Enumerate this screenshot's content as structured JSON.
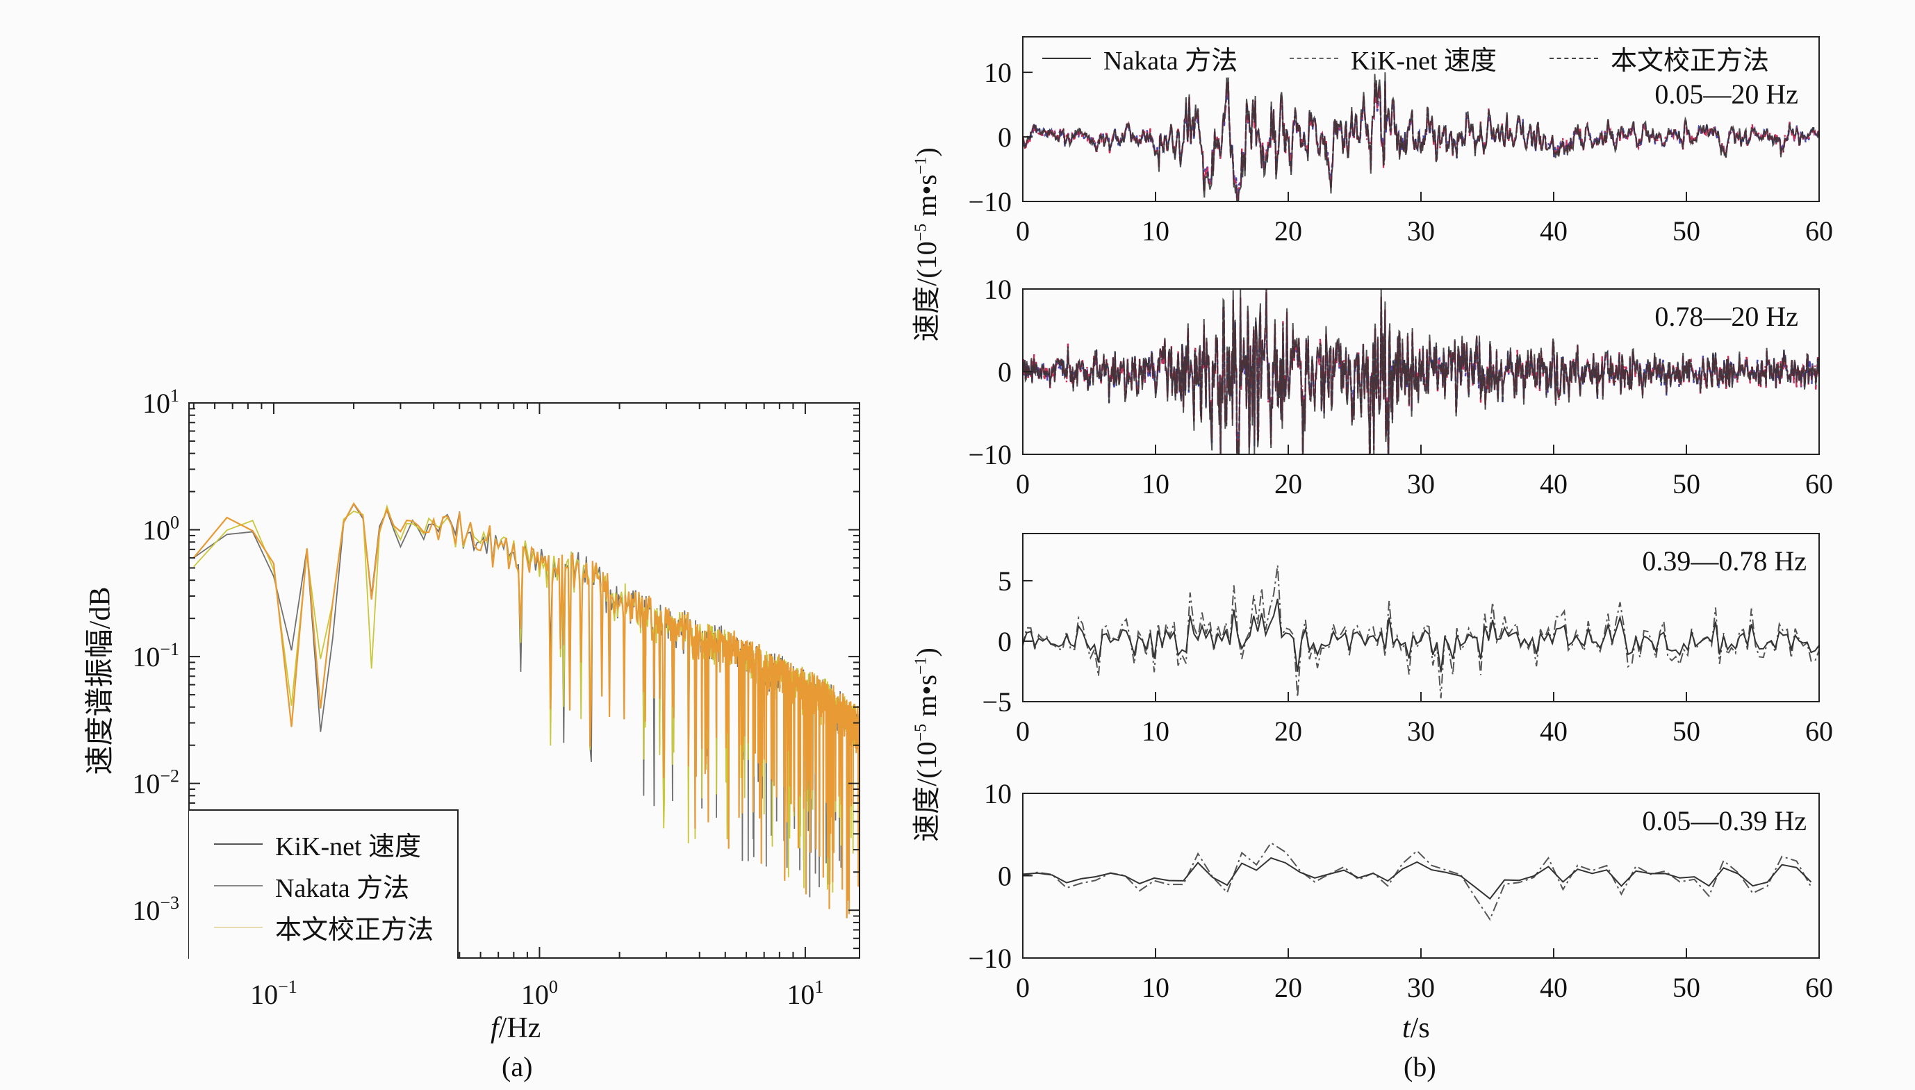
{
  "colors": {
    "orange": "#e89a35",
    "yellowgreen": "#c9c83a",
    "gray": "#707070",
    "nakata": "#333333",
    "kiknet": "#c8305a",
    "corrected": "#4848b0"
  },
  "chart_data": [
    {
      "type": "line",
      "title": "(a)",
      "xlabel_italic": "f",
      "xlabel_unit": "/Hz",
      "ylabel": "速度谱振幅/dB",
      "xscale": "log",
      "yscale": "log",
      "xlim": [
        0.048,
        16
      ],
      "ylim": [
        0.00042,
        10
      ],
      "xticks": [
        {
          "v": 0.1,
          "base": "10",
          "exp": "−1"
        },
        {
          "v": 1,
          "base": "10",
          "exp": "0"
        },
        {
          "v": 10,
          "base": "10",
          "exp": "1"
        }
      ],
      "yticks": [
        {
          "v": 10,
          "base": "10",
          "exp": "1"
        },
        {
          "v": 1,
          "base": "10",
          "exp": "0"
        },
        {
          "v": 0.1,
          "base": "10",
          "exp": "−1"
        },
        {
          "v": 0.01,
          "base": "10",
          "exp": "−2"
        },
        {
          "v": 0.001,
          "base": "10",
          "exp": "−3"
        }
      ],
      "legend": {
        "placement": "bottom-left",
        "items": [
          "KiK-net 速度",
          "Nakata 方法",
          "本文校正方法"
        ]
      },
      "trend": [
        [
          0.05,
          0.8
        ],
        [
          0.06,
          0.6
        ],
        [
          0.07,
          1.3
        ],
        [
          0.09,
          1.2
        ],
        [
          0.1,
          0.5
        ],
        [
          0.13,
          0.6
        ],
        [
          0.2,
          1.6
        ],
        [
          0.3,
          1.2
        ],
        [
          0.5,
          1.1
        ],
        [
          0.8,
          0.7
        ],
        [
          1,
          0.6
        ],
        [
          1.5,
          0.5
        ],
        [
          2,
          0.3
        ],
        [
          3,
          0.2
        ],
        [
          5,
          0.13
        ],
        [
          8,
          0.08
        ],
        [
          12,
          0.05
        ],
        [
          16,
          0.03
        ]
      ],
      "series": [
        {
          "name": "Nakata 方法",
          "seed": 11
        },
        {
          "name": "本文校正方法",
          "seed": 23
        },
        {
          "name": "KiK-net 速度",
          "seed": 37
        }
      ]
    },
    {
      "type": "line",
      "title": "(b)",
      "xlabel_italic": "t",
      "xlabel_unit": "/s",
      "ylabel": "速度/(10",
      "ylabel_exp": "−5",
      "ylabel_mid": " m•s",
      "ylabel_exp2": "−1",
      "ylabel_end": ")",
      "legend": {
        "placement": "top",
        "items": [
          "Nakata 方法",
          "KiK-net 速度",
          "本文校正方法"
        ]
      },
      "xlim": [
        0,
        60
      ],
      "xticks": [
        0,
        10,
        20,
        30,
        40,
        50,
        60
      ],
      "panels": [
        {
          "band": "0.05—20 Hz",
          "ylim": [
            -10,
            15.5
          ],
          "yticks": [
            {
              "v": 10,
              "t": "10"
            },
            {
              "v": 0,
              "t": "0"
            },
            {
              "v": -10,
              "t": "−10"
            }
          ],
          "kind": "broad",
          "seed": 5,
          "envelope": [
            1,
            1,
            1,
            1,
            1.2,
            1.2,
            1.3,
            1.3,
            1.3,
            1.3,
            2,
            2.5,
            3,
            3.5,
            4,
            4.5,
            4.5,
            4.5,
            4,
            4,
            4,
            3.5,
            3,
            3,
            3,
            3,
            3,
            6,
            4,
            3,
            3,
            3,
            3,
            2.5,
            2.5,
            2,
            2,
            2,
            1.8,
            1.8,
            1.8,
            1.5,
            1.5,
            1.5,
            1.5,
            1.3,
            1.3,
            1.3,
            1.3,
            1.3,
            1.3,
            1.3,
            1.3,
            1.3,
            1.8,
            1.3,
            1.2,
            1.2,
            1.2,
            1,
            1
          ],
          "peak": [
            27.3,
            10
          ]
        },
        {
          "band": "0.78—20 Hz",
          "ylim": [
            -10,
            10
          ],
          "yticks": [
            {
              "v": 10,
              "t": "10"
            },
            {
              "v": 0,
              "t": "0"
            },
            {
              "v": -10,
              "t": "−10"
            }
          ],
          "kind": "high",
          "seed": 9,
          "envelope": [
            1,
            1,
            1,
            1,
            1,
            1.2,
            1.5,
            1.5,
            1.5,
            1.5,
            2.2,
            2.5,
            3,
            3.5,
            4,
            4.5,
            5,
            5.5,
            5,
            4.5,
            4,
            3.5,
            3,
            3,
            3,
            3,
            3,
            6,
            3.5,
            3,
            2.5,
            2.5,
            2.2,
            2,
            2,
            2,
            2,
            1.8,
            1.8,
            1.6,
            1.6,
            1.5,
            1.5,
            1.4,
            1.3,
            1.2,
            1.2,
            1.2,
            1.2,
            1.2,
            1.1,
            1.1,
            1.1,
            1.1,
            1,
            1,
            1,
            1,
            1,
            1,
            1
          ],
          "peak": [
            27.3,
            8.5
          ]
        },
        {
          "band": "0.39—0.78 Hz",
          "ylim": [
            -5,
            8.9
          ],
          "yticks": [
            {
              "v": 5,
              "t": "5"
            },
            {
              "v": 0,
              "t": "0"
            },
            {
              "v": -5,
              "t": "−5"
            }
          ],
          "kind": "mid",
          "seed": 13,
          "envelope": [
            0.5,
            0.5,
            0.5,
            0.6,
            0.8,
            1,
            1,
            1,
            1,
            1.5,
            2,
            2,
            1.8,
            1.8,
            1.5,
            1.5,
            2,
            1.8,
            1.8,
            3,
            2,
            2,
            1.8,
            1.8,
            1.5,
            1.5,
            1.5,
            1.8,
            1.5,
            1.5,
            1.5,
            1.5,
            1.8,
            2.2,
            1.8,
            1.5,
            1.5,
            1.3,
            1.3,
            1.3,
            1.3,
            1.3,
            1.3,
            1.3,
            1.2,
            1.2,
            1.2,
            1.1,
            1.1,
            1.1,
            1,
            1,
            1,
            1,
            1,
            1,
            0.9,
            0.9,
            0.9,
            0.8,
            0.8
          ],
          "peak": [
            19.2,
            5
          ]
        },
        {
          "band": "0.05—0.39 Hz",
          "ylim": [
            -10,
            10
          ],
          "yticks": [
            {
              "v": 10,
              "t": "10"
            },
            {
              "v": 0,
              "t": "0"
            },
            {
              "v": -10,
              "t": "−10"
            }
          ],
          "kind": "low",
          "seed": 17,
          "envelope": [
            0.8,
            0.8,
            0.8,
            0.8,
            0.8,
            0.8,
            0.8,
            0.8,
            0.8,
            0.9,
            1,
            1,
            1,
            1,
            1.2,
            1.5,
            2.5,
            2,
            1.5,
            1.5,
            2,
            2.2,
            2,
            1.5,
            1.5,
            1.5,
            1.5,
            1.5,
            1.5,
            2.2,
            2.2,
            1.8,
            1.5,
            1.5,
            2,
            3,
            2,
            1.5,
            1.5,
            1.5,
            1.2,
            1.2,
            1.2,
            1.2,
            1.2,
            1.2,
            1.2,
            1.2,
            1.2,
            1.2,
            1.2,
            1.2,
            1.2,
            1.2,
            1.2,
            1.3,
            1.5,
            1.3,
            1.2,
            1.2,
            1
          ],
          "peak": [
            35.5,
            -4
          ]
        }
      ]
    }
  ]
}
